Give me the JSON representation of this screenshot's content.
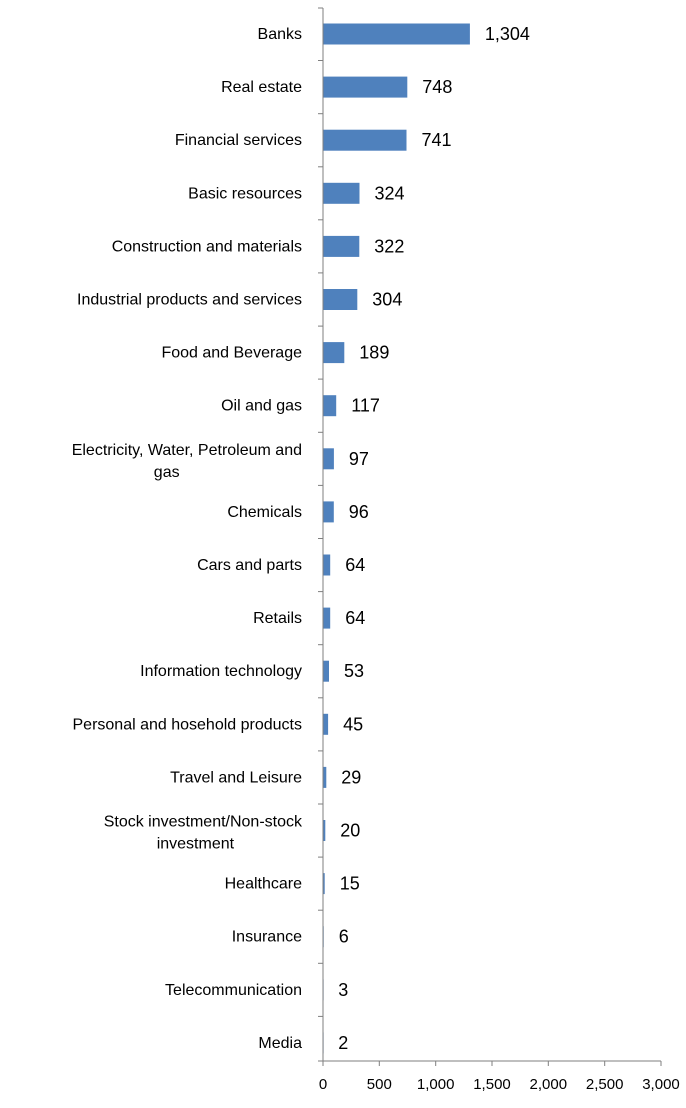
{
  "chart_data": {
    "type": "bar",
    "orientation": "horizontal",
    "title": "",
    "xlabel": "",
    "ylabel": "",
    "categories": [
      "Banks",
      "Real estate",
      "Financial services",
      "Basic resources",
      "Construction and materials",
      "Industrial products and services",
      "Food and Beverage",
      "Oil and gas",
      "Electricity, Water, Petroleum and gas",
      "Chemicals",
      "Cars and parts",
      "Retails",
      "Information technology",
      "Personal and hosehold products",
      "Travel and Leisure",
      "Stock investment/Non-stock investment",
      "Healthcare",
      "Insurance",
      "Telecommunication",
      "Media"
    ],
    "values": [
      1304,
      748,
      741,
      324,
      322,
      304,
      189,
      117,
      97,
      96,
      64,
      64,
      53,
      45,
      29,
      20,
      15,
      6,
      3,
      2
    ],
    "value_labels": [
      "1,304",
      "748",
      "741",
      "324",
      "322",
      "304",
      "189",
      "117",
      "97",
      "96",
      "64",
      "64",
      "53",
      "45",
      "29",
      "20",
      "15",
      "6",
      "3",
      "2"
    ],
    "xlim": [
      0,
      3000
    ],
    "x_ticks": [
      0,
      500,
      1000,
      1500,
      2000,
      2500,
      3000
    ],
    "x_tick_labels": [
      "0",
      "500",
      "1,000",
      "1,500",
      "2,000",
      "2,500",
      "3,000"
    ],
    "grid": false,
    "legend": "none",
    "bar_color": "#4f81bd",
    "axis_color": "#7f7f7f"
  }
}
